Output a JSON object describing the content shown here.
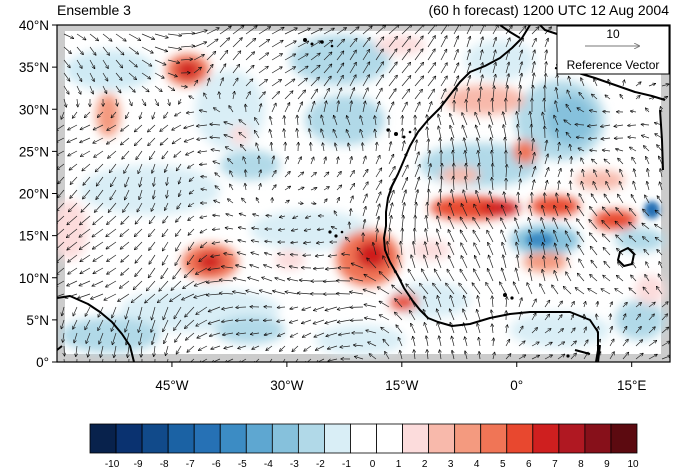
{
  "titles": {
    "left": "Ensemble 3",
    "right": "(60 h forecast) 1200 UTC 12 Aug 2004"
  },
  "reference_vector": {
    "magnitude": "10",
    "label": "Reference Vector"
  },
  "axes": {
    "lon_min": -60,
    "lon_max": 20,
    "lat_min": 0,
    "lat_max": 40,
    "lat_ticks": [
      {
        "value": 40,
        "label": "40°N"
      },
      {
        "value": 35,
        "label": "35°N"
      },
      {
        "value": 30,
        "label": "30°N"
      },
      {
        "value": 25,
        "label": "25°N"
      },
      {
        "value": 20,
        "label": "20°N"
      },
      {
        "value": 15,
        "label": "15°N"
      },
      {
        "value": 10,
        "label": "10°N"
      },
      {
        "value": 5,
        "label": "5°N"
      },
      {
        "value": 0,
        "label": "0°"
      }
    ],
    "lon_ticks": [
      {
        "value": -45,
        "label": "45°W"
      },
      {
        "value": -30,
        "label": "30°W"
      },
      {
        "value": -15,
        "label": "15°W"
      },
      {
        "value": 0,
        "label": "0°"
      },
      {
        "value": 15,
        "label": "15°E"
      }
    ]
  },
  "colorbar": {
    "labels": [
      "-10",
      "-9",
      "-8",
      "-7",
      "-6",
      "-5",
      "-4",
      "-3",
      "-2",
      "-1",
      "0",
      "1",
      "2",
      "3",
      "4",
      "5",
      "6",
      "7",
      "8",
      "9",
      "10"
    ],
    "colors": [
      "#08224c",
      "#0a3270",
      "#114a8a",
      "#1b62a4",
      "#2671b5",
      "#3c8cc4",
      "#5ea7d1",
      "#86c1dc",
      "#b1d9e8",
      "#d9eef6",
      "#ffffff",
      "#ffffff",
      "#fcdcdc",
      "#f8b9ab",
      "#f49a7f",
      "#f07556",
      "#e8482f",
      "#cf1f1f",
      "#b01822",
      "#87101a",
      "#5c0a10"
    ]
  },
  "colors": {
    "land_gray": "#cccccc",
    "coast": "#000000",
    "vector": "#000000"
  }
}
